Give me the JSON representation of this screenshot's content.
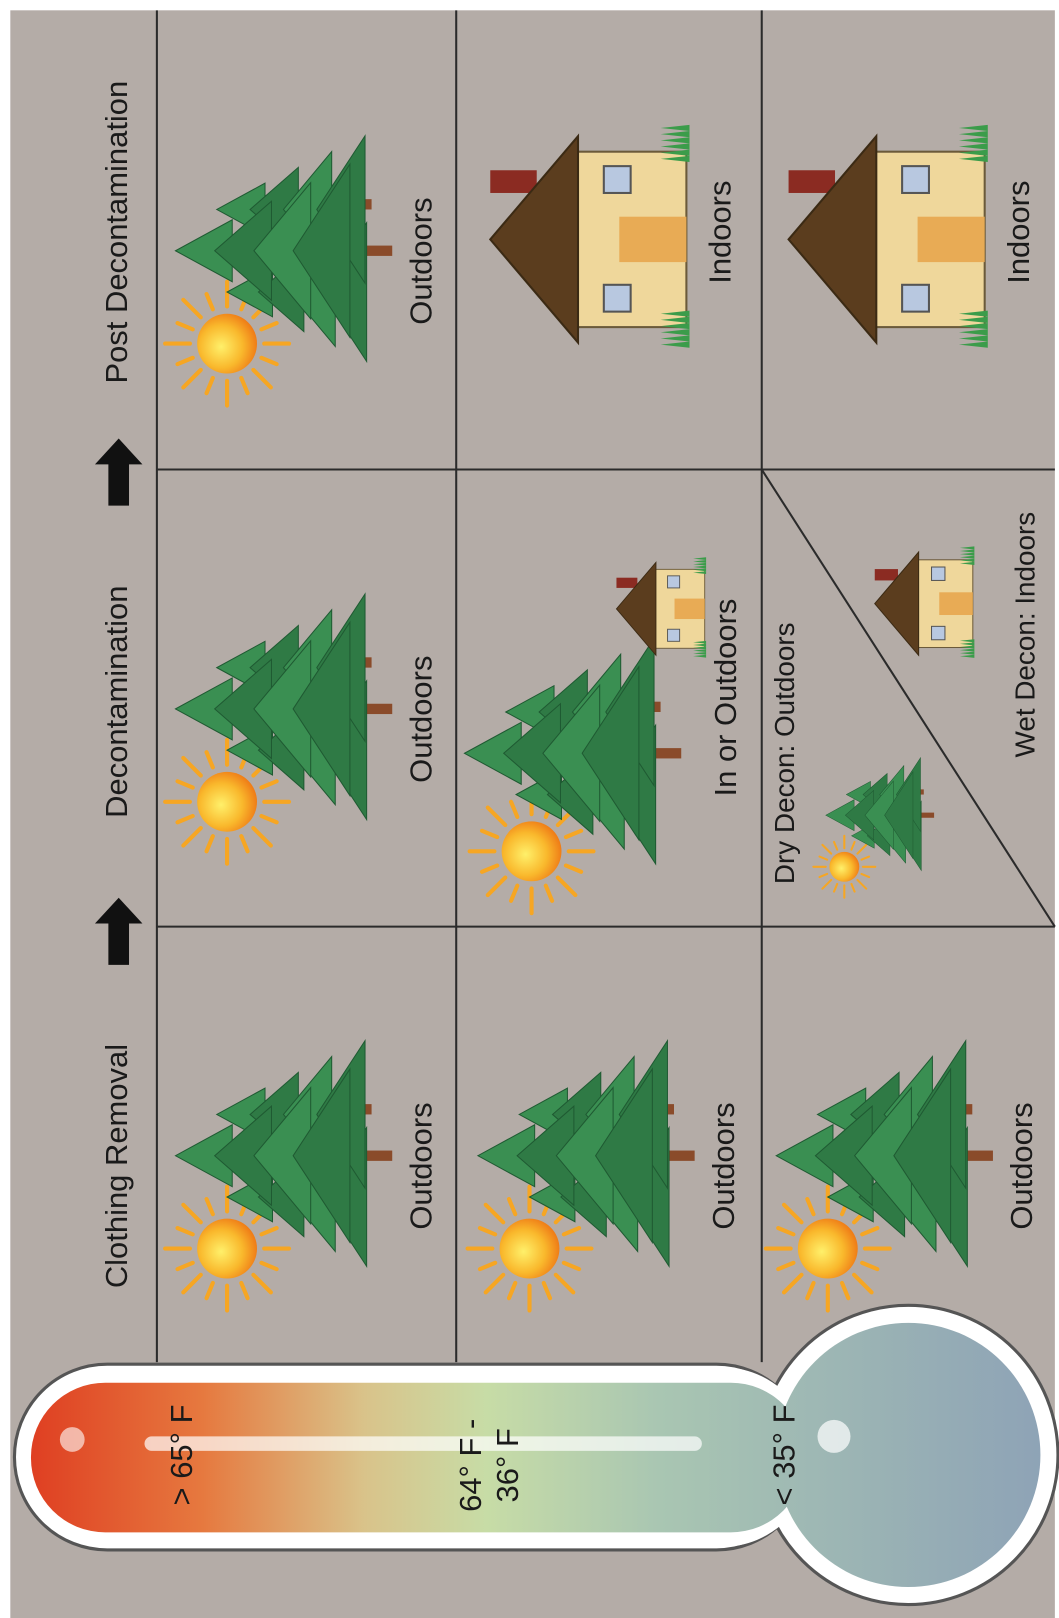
{
  "header": {
    "columns": [
      "Clothing Removal",
      "Decontamination",
      "Post Decontamination"
    ]
  },
  "thermometer": {
    "labels": [
      [
        "> 65° F"
      ],
      [
        "64° F -",
        "36° F"
      ],
      [
        "< 35° F"
      ]
    ]
  },
  "cells": [
    [
      "Outdoors",
      "Outdoors",
      "Outdoors"
    ],
    [
      "Outdoors",
      "In or Outdoors",
      "Indoors"
    ],
    [
      "Outdoors",
      [
        "Dry Decon: Outdoors",
        "Wet Decon: Indoors"
      ],
      "Indoors"
    ]
  ]
}
